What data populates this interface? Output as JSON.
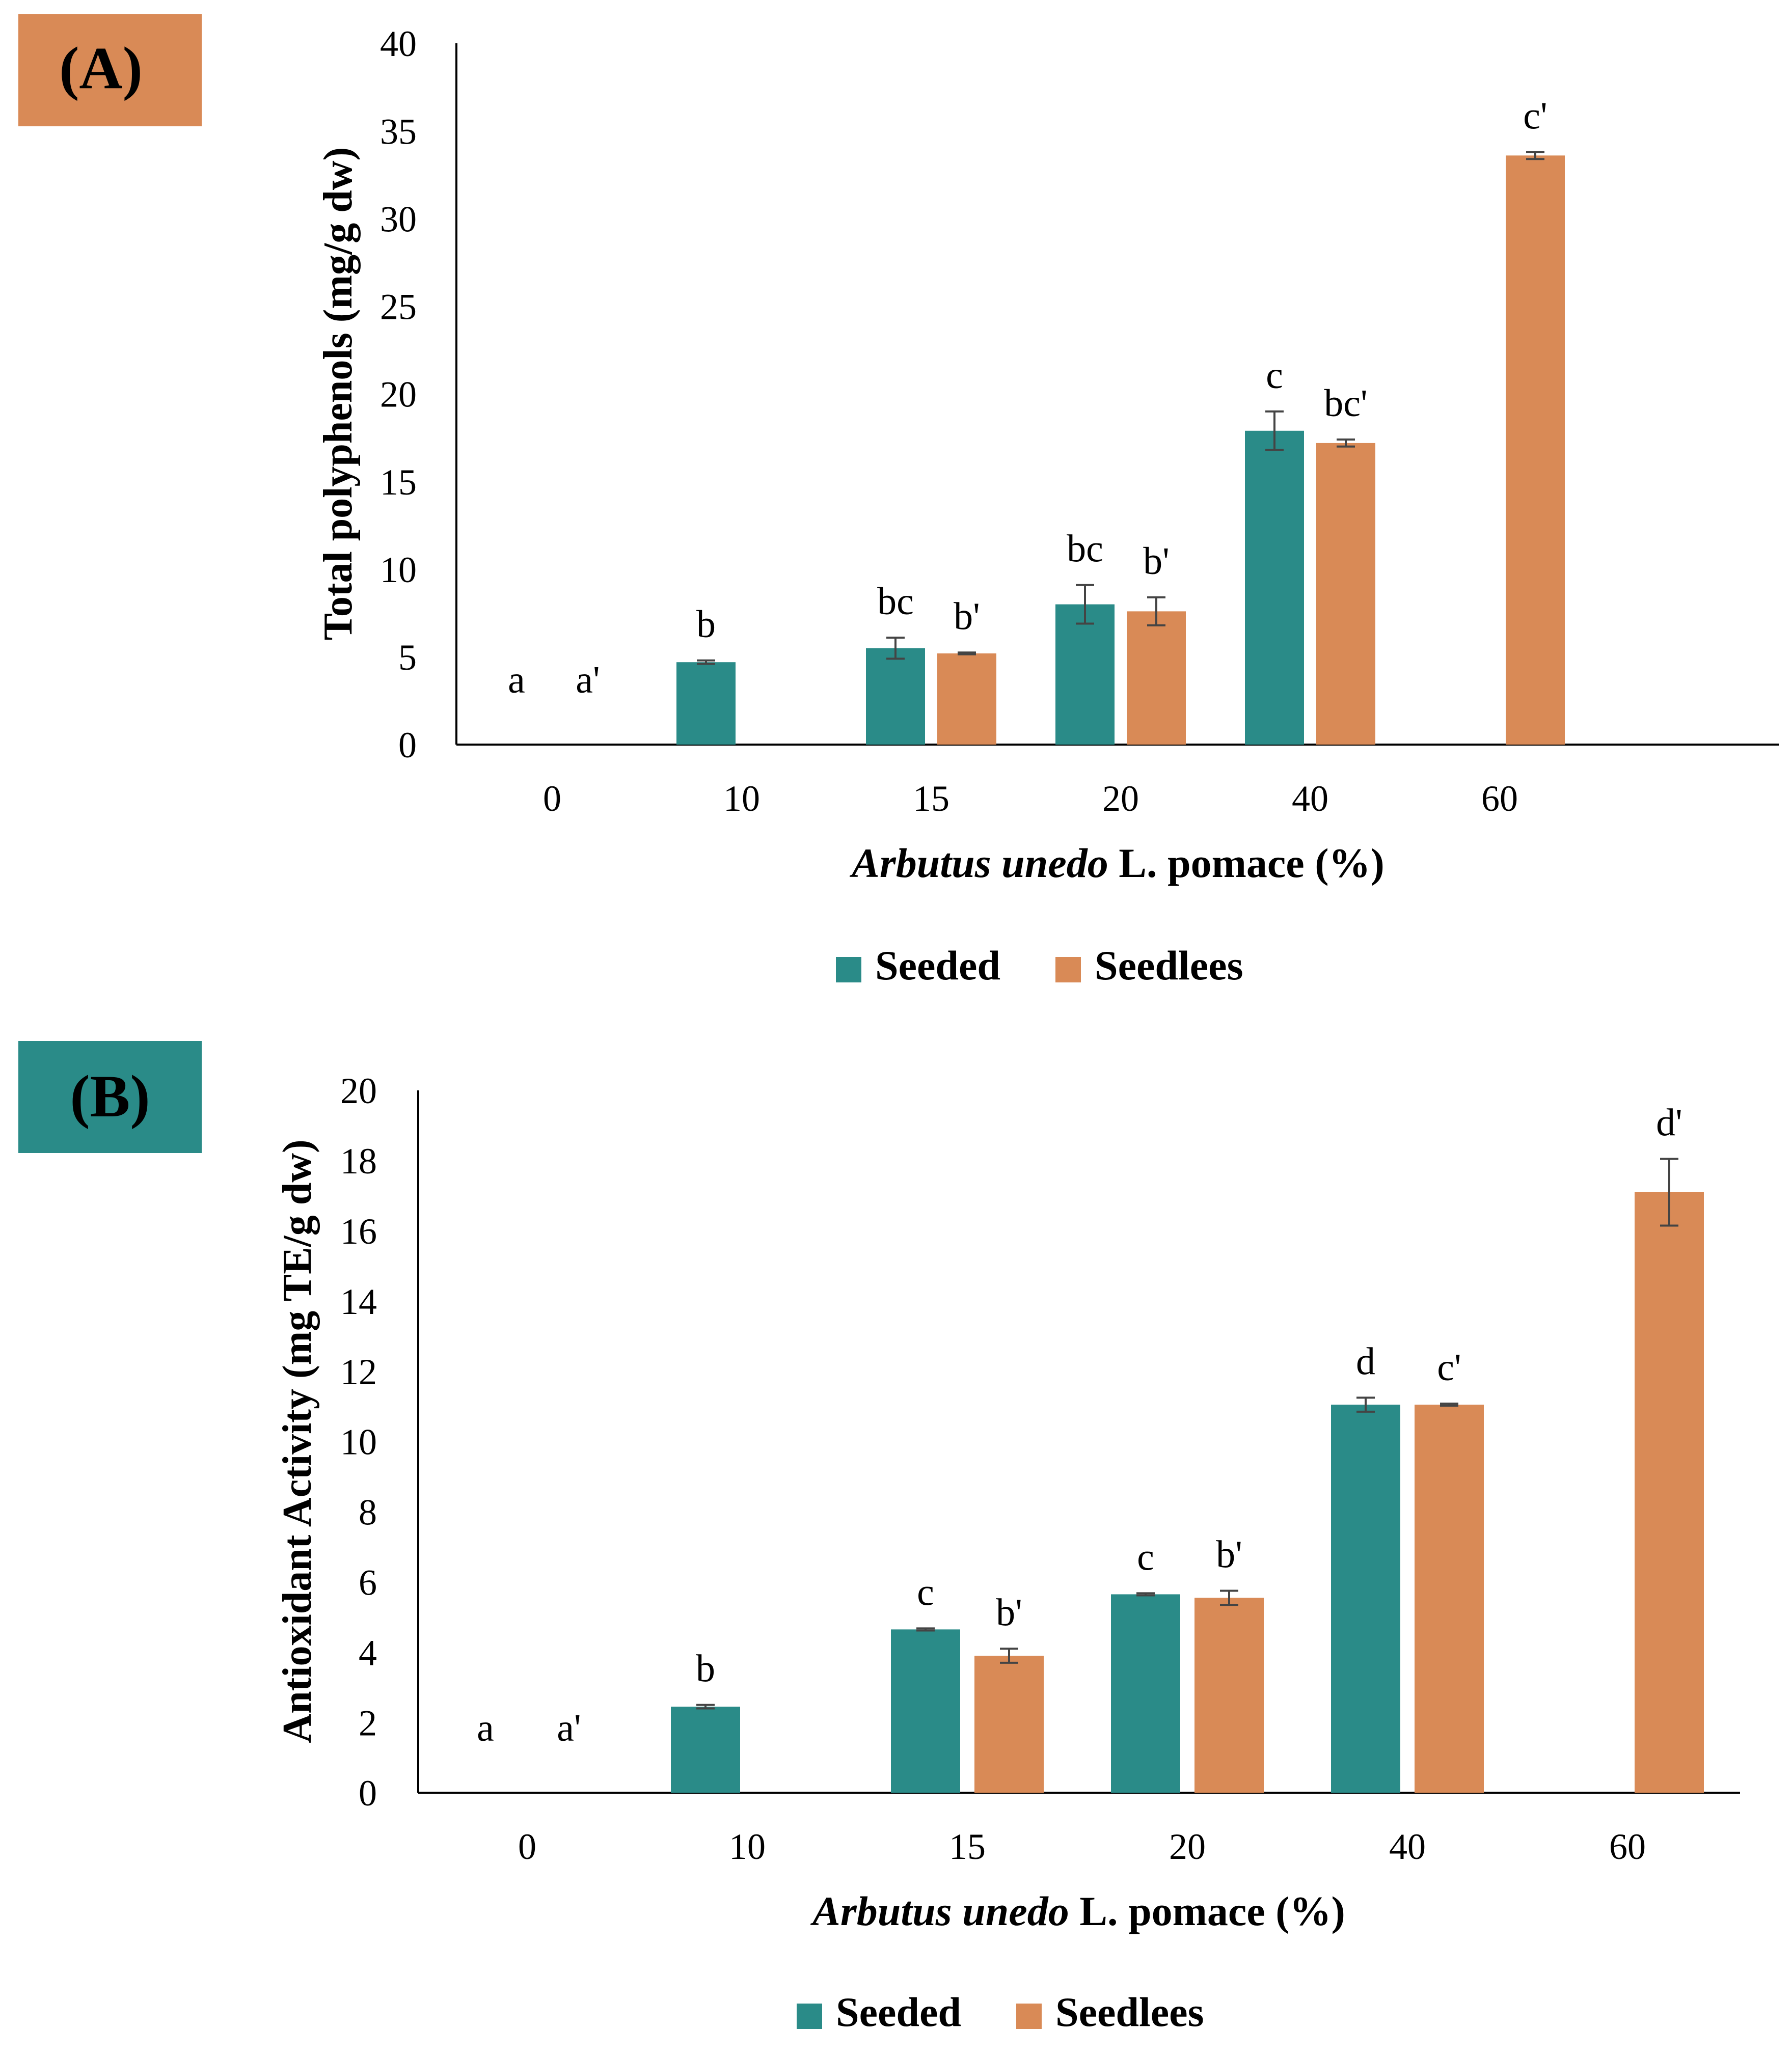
{
  "colors": {
    "seeded": "#2a8b88",
    "seedless": "#d98a56",
    "axis": "#000000",
    "error": "#444444"
  },
  "chart_data": [
    {
      "type": "bar",
      "panel_label": "(A)",
      "panel_color": "#d98a56",
      "categories": [
        "0",
        "10",
        "15",
        "20",
        "40",
        "60"
      ],
      "xlabel_italic": "Arbutus unedo",
      "xlabel_rest": " L. pomace (%)",
      "ylabel": "Total polyphenols (mg/g dw)",
      "ylim": [
        0,
        40
      ],
      "yticks": [
        0,
        5,
        10,
        15,
        20,
        25,
        30,
        35,
        40
      ],
      "grid": false,
      "legend_position": "bottom-center",
      "series": [
        {
          "name": "Seeded",
          "values": [
            0,
            4.7,
            5.5,
            8.0,
            17.9,
            null
          ],
          "errors": [
            0,
            0.1,
            0.6,
            1.1,
            1.1,
            null
          ],
          "letters": [
            "a",
            "b",
            "bc",
            "bc",
            "c",
            ""
          ]
        },
        {
          "name": "Seedlees",
          "values": [
            0,
            null,
            5.2,
            7.6,
            17.2,
            33.6
          ],
          "errors": [
            0,
            null,
            0.05,
            0.8,
            0.2,
            0.2
          ],
          "letters": [
            "a'",
            "",
            "b'",
            "b'",
            "bc'",
            "c'"
          ]
        }
      ]
    },
    {
      "type": "bar",
      "panel_label": "(B)",
      "panel_color": "#2a8b88",
      "categories": [
        "0",
        "10",
        "15",
        "20",
        "40",
        "60"
      ],
      "xlabel_italic": "Arbutus unedo",
      "xlabel_rest": " L. pomace (%)",
      "ylabel": "Antioxidant Activity (mg TE/g dw)",
      "ylim": [
        0,
        20
      ],
      "yticks": [
        0,
        2,
        4,
        6,
        8,
        10,
        12,
        14,
        16,
        18,
        20
      ],
      "grid": false,
      "legend_position": "bottom-center",
      "series": [
        {
          "name": "Seeded",
          "values": [
            0,
            2.45,
            4.65,
            5.65,
            11.05,
            null
          ],
          "errors": [
            0,
            0.05,
            0.03,
            0.03,
            0.2,
            null
          ],
          "letters": [
            "a",
            "b",
            "c",
            "c",
            "d",
            ""
          ]
        },
        {
          "name": "Seedlees",
          "values": [
            0,
            null,
            3.9,
            5.55,
            11.05,
            17.1
          ],
          "errors": [
            0,
            null,
            0.2,
            0.2,
            0.03,
            0.95
          ],
          "letters": [
            "a'",
            "",
            "b'",
            "b'",
            "c'",
            "d'"
          ]
        }
      ]
    }
  ]
}
